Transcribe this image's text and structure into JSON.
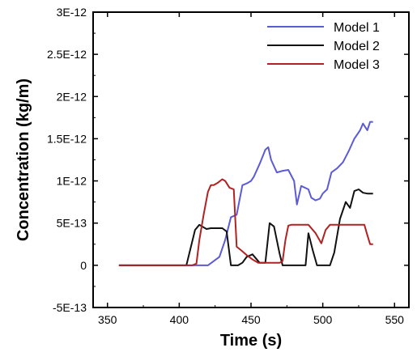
{
  "chart_data": {
    "type": "line",
    "title": "",
    "xlabel": "Time (s)",
    "ylabel": "Concentration (kg/m)",
    "xlim": [
      340,
      560
    ],
    "ylim": [
      -5e-13,
      3e-12
    ],
    "x_ticks": [
      350,
      400,
      450,
      500,
      550
    ],
    "x_tick_labels": [
      "350",
      "400",
      "450",
      "500",
      "550"
    ],
    "y_ticks": [
      -5e-13,
      0,
      5e-13,
      1e-12,
      1.5e-12,
      2e-12,
      2.5e-12,
      3e-12
    ],
    "y_tick_labels": [
      "-5E-13",
      "0",
      "5E-13",
      "1E-12",
      "1.5E-12",
      "2E-12",
      "2.5E-12",
      "3E-12"
    ],
    "grid": false,
    "legend_position": "top-right",
    "series": [
      {
        "name": "Model 1",
        "color": "#5b5bd6",
        "x": [
          358,
          412,
          420,
          428,
          432,
          436,
          440,
          444,
          447,
          450,
          452,
          456,
          460,
          462,
          464,
          468,
          472,
          476,
          480,
          482,
          485,
          490,
          492,
          495,
          498,
          500,
          503,
          506,
          510,
          514,
          518,
          522,
          526,
          528,
          531,
          533,
          535
        ],
        "y": [
          0,
          0,
          0,
          1e-13,
          3e-13,
          5.7e-13,
          6e-13,
          9.5e-13,
          9.7e-13,
          1e-12,
          1.05e-12,
          1.2e-12,
          1.37e-12,
          1.4e-12,
          1.25e-12,
          1.1e-12,
          1.12e-12,
          1.13e-12,
          1e-12,
          7.2e-13,
          9.4e-13,
          9e-13,
          8e-13,
          7.7e-13,
          7.9e-13,
          8.5e-13,
          9e-13,
          1.1e-12,
          1.15e-12,
          1.22e-12,
          1.35e-12,
          1.5e-12,
          1.6e-12,
          1.68e-12,
          1.6e-12,
          1.7e-12,
          1.7e-12
        ]
      },
      {
        "name": "Model 2",
        "color": "#111111",
        "x": [
          358,
          405,
          411,
          414,
          419,
          422,
          426,
          430,
          433,
          436,
          441,
          444,
          447,
          451,
          456,
          460,
          463,
          466,
          470,
          472,
          475,
          478,
          482,
          485,
          488,
          490,
          493,
          496,
          499,
          502,
          505,
          508,
          512,
          516,
          519,
          522,
          525,
          528,
          531,
          535
        ],
        "y": [
          0,
          0,
          4.2e-13,
          4.8e-13,
          4.3e-13,
          4.4e-13,
          4.4e-13,
          4.4e-13,
          4e-13,
          0,
          0,
          3e-14,
          1e-13,
          1.3e-13,
          3e-14,
          3e-14,
          5e-13,
          4.6e-13,
          1.3e-13,
          0,
          0,
          0,
          0,
          0,
          0,
          3.8e-13,
          1.8e-13,
          0,
          0,
          0,
          0,
          1.5e-13,
          5.5e-13,
          7.5e-13,
          6.8e-13,
          8.8e-13,
          9e-13,
          8.6e-13,
          8.5e-13,
          8.5e-13
        ]
      },
      {
        "name": "Model 3",
        "color": "#b22222",
        "x": [
          358,
          409,
          412,
          414,
          417,
          420,
          422,
          424,
          427,
          430,
          432,
          435,
          438,
          440,
          443,
          447,
          451,
          455,
          459,
          463,
          467,
          470,
          472,
          474,
          476,
          478,
          481,
          484,
          490,
          495,
          499,
          502,
          505,
          510,
          515,
          520,
          525,
          529,
          531,
          533,
          535
        ],
        "y": [
          0,
          0,
          2e-14,
          3e-13,
          6e-13,
          8.7e-13,
          9.5e-13,
          9.5e-13,
          9.8e-13,
          1.02e-12,
          1e-12,
          9.2e-13,
          9e-13,
          2.2e-13,
          1.8e-13,
          1.2e-13,
          7e-14,
          3e-14,
          3e-14,
          3e-14,
          3e-14,
          3e-14,
          5e-14,
          3e-13,
          4.7e-13,
          4.8e-13,
          4.8e-13,
          4.8e-13,
          4.8e-13,
          3.8e-13,
          2.6e-13,
          4.2e-13,
          4.8e-13,
          4.8e-13,
          4.8e-13,
          4.8e-13,
          4.8e-13,
          4.8e-13,
          3.6e-13,
          2.5e-13,
          2.5e-13
        ]
      }
    ]
  }
}
